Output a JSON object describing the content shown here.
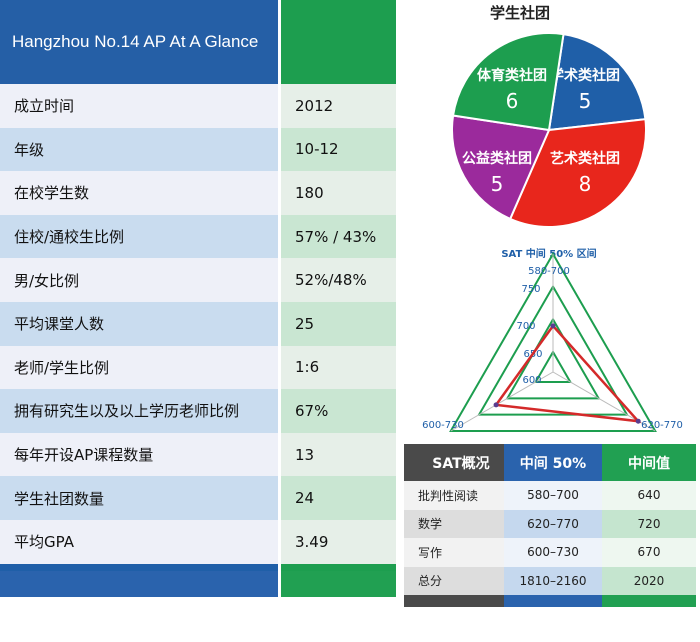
{
  "left_table": {
    "title": "Hangzhou No.14 AP At A Glance",
    "rows": [
      {
        "label": "成立时间",
        "value": "2012"
      },
      {
        "label": "年级",
        "value": "10-12"
      },
      {
        "label": "在校学生数",
        "value": "180"
      },
      {
        "label": "住校/通校生比例",
        "value": "57% / 43%"
      },
      {
        "label": "男/女比例",
        "value": "52%/48%"
      },
      {
        "label": "平均课堂人数",
        "value": "25"
      },
      {
        "label": "老师/学生比例",
        "value": "1:6"
      },
      {
        "label": "拥有研究生以及以上学历老师比例",
        "value": "67%"
      },
      {
        "label": "每年开设AP课程数量",
        "value": "13"
      },
      {
        "label": "学生社团数量",
        "value": "24"
      },
      {
        "label": "平均GPA",
        "value": "3.49"
      }
    ]
  },
  "chart_data": [
    {
      "type": "pie",
      "title": "学生社团",
      "categories": [
        "学术类社团",
        "艺术类社团",
        "公益类社团",
        "体育类社团"
      ],
      "values": [
        5,
        8,
        5,
        6
      ],
      "colors": [
        "#1f5fa8",
        "#e8261c",
        "#9b2a9c",
        "#1d9e4f"
      ]
    },
    {
      "type": "radar",
      "title": "SAT 中间 50% 区间",
      "axes": [
        "580-700",
        "620-770",
        "600-730"
      ],
      "tick_labels": [
        "650",
        "700",
        "750",
        "600"
      ],
      "series": [
        {
          "values": [
            640,
            720,
            670
          ],
          "color": "#d42a2a"
        }
      ],
      "rings": [
        600,
        650,
        700,
        750
      ],
      "grid_color": "#1d9e4f"
    }
  ],
  "sat_table": {
    "headers": [
      "SAT概况",
      "中间 50%",
      "中间值"
    ],
    "rows": [
      {
        "subject": "批判性阅读",
        "range": "580–700",
        "median": "640"
      },
      {
        "subject": "数学",
        "range": "620–770",
        "median": "720"
      },
      {
        "subject": "写作",
        "range": "600–730",
        "median": "670"
      },
      {
        "subject": "总分",
        "range": "1810–2160",
        "median": "2020"
      }
    ],
    "colors": {
      "dark": "#4a4a4a",
      "blue": "#2a63ad",
      "green": "#21a052"
    }
  }
}
